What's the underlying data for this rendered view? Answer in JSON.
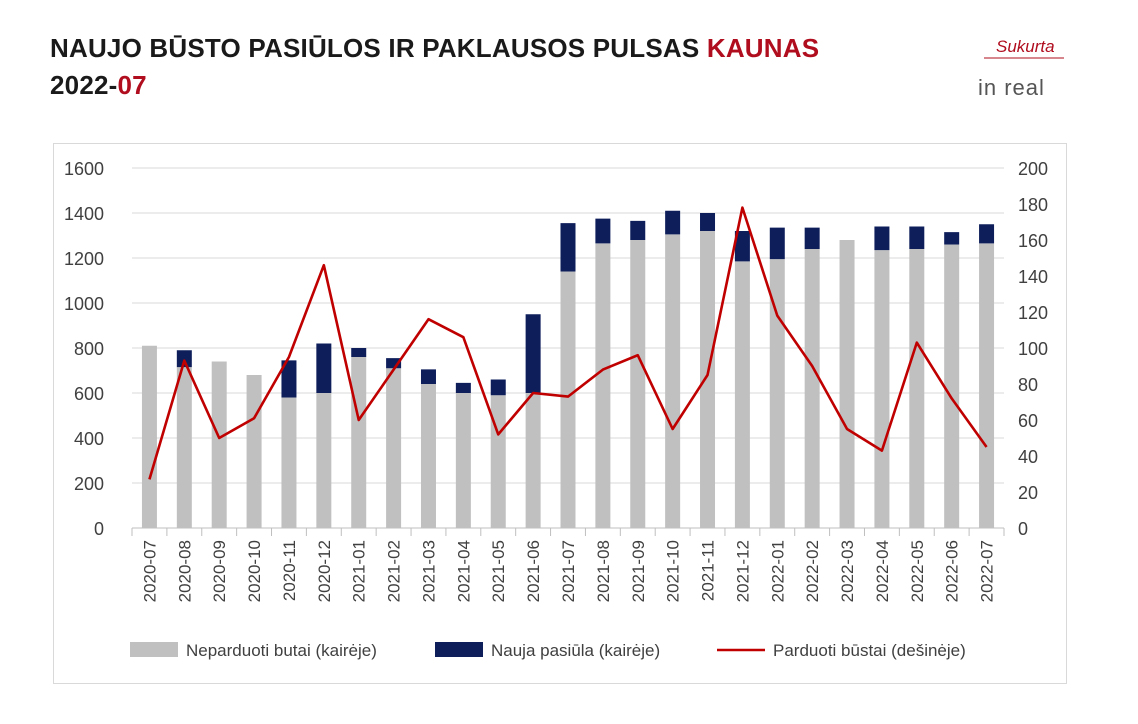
{
  "header": {
    "title_main": "NAUJO BŪSTO PASIŪLOS IR PAKLAUSOS PULSAS",
    "title_city": "KAUNAS",
    "period_year": "2022-",
    "period_month": "07"
  },
  "logo": {
    "tagline": "Sukurta",
    "brand": "in real"
  },
  "colors": {
    "unsold": "#c0c0c0",
    "new_supply": "#0e1e5b",
    "sold": "#c00000",
    "accent": "#b00d1e"
  },
  "chart_data": {
    "type": "bar",
    "stacked": true,
    "categories": [
      "2020-07",
      "2020-08",
      "2020-09",
      "2020-10",
      "2020-11",
      "2020-12",
      "2021-01",
      "2021-02",
      "2021-03",
      "2021-04",
      "2021-05",
      "2021-06",
      "2021-07",
      "2021-08",
      "2021-09",
      "2021-10",
      "2021-11",
      "2021-12",
      "2022-01",
      "2022-02",
      "2022-03",
      "2022-04",
      "2022-05",
      "2022-06",
      "2022-07"
    ],
    "series": [
      {
        "name": "Neparduoti butai (kairėje)",
        "type": "bar",
        "axis": "left",
        "values": [
          810,
          715,
          740,
          680,
          580,
          600,
          760,
          710,
          640,
          600,
          590,
          600,
          1140,
          1265,
          1280,
          1305,
          1320,
          1185,
          1195,
          1240,
          1280,
          1235,
          1240,
          1260,
          1265
        ]
      },
      {
        "name": "Nauja pasiūla (kairėje)",
        "type": "bar",
        "axis": "left",
        "values": [
          0,
          75,
          0,
          0,
          165,
          220,
          40,
          45,
          65,
          45,
          70,
          350,
          215,
          110,
          85,
          105,
          80,
          135,
          140,
          95,
          0,
          105,
          100,
          55,
          85
        ]
      },
      {
        "name": "Parduoti būstai (dešinėje)",
        "type": "line",
        "axis": "right",
        "values": [
          27,
          93,
          50,
          61,
          95,
          146,
          60,
          88,
          116,
          106,
          52,
          75,
          73,
          88,
          96,
          55,
          85,
          178,
          118,
          90,
          55,
          43,
          103,
          72,
          45
        ]
      }
    ],
    "y_left": {
      "min": 0,
      "max": 1600,
      "ticks": [
        "0",
        "200",
        "400",
        "600",
        "800",
        "1000",
        "1200",
        "1400",
        "1600"
      ]
    },
    "y_right": {
      "min": 0,
      "max": 200,
      "ticks": [
        "0",
        "20",
        "40",
        "60",
        "80",
        "100",
        "120",
        "140",
        "160",
        "180",
        "200"
      ]
    },
    "grid": true,
    "legend_position": "bottom"
  }
}
